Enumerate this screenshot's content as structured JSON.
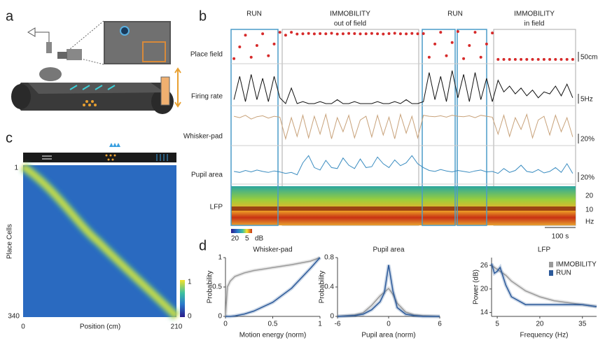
{
  "panel_labels": [
    "a",
    "b",
    "c",
    "d"
  ],
  "panel_b": {
    "periods": [
      {
        "label": "RUN"
      },
      {
        "label": "IMMOBILITY",
        "sublabel": "out of field"
      },
      {
        "label": "RUN"
      },
      {
        "label": "IMMOBILITY",
        "sublabel": "in field"
      }
    ],
    "traces": [
      {
        "name": "Place field",
        "scale": "50cm",
        "color": "#d62a2a",
        "values": [
          20,
          100,
          180,
          30,
          110,
          190,
          40,
          120,
          200,
          180,
          200,
          188,
          190,
          192,
          189,
          191,
          190,
          193,
          188,
          190,
          192,
          191,
          189,
          190,
          192,
          190,
          188,
          191,
          193,
          190,
          189,
          192,
          190,
          191,
          30,
          120,
          200,
          40,
          130,
          205,
          20,
          110,
          200,
          30,
          120,
          195,
          15,
          15,
          15,
          15,
          15,
          15,
          15,
          15,
          15,
          15,
          15,
          15,
          15,
          15
        ]
      },
      {
        "name": "Firing rate",
        "scale": "5Hz",
        "color": "#111111",
        "values": [
          2,
          14,
          1,
          15,
          2,
          13,
          1,
          14,
          3,
          0,
          8,
          0,
          1,
          0,
          0,
          1,
          0,
          0,
          2,
          0,
          0,
          1,
          0,
          0,
          0,
          1,
          0,
          0,
          1,
          0,
          2,
          0,
          0,
          1,
          16,
          2,
          14,
          1,
          17,
          3,
          15,
          1,
          16,
          2,
          13,
          1,
          12,
          6,
          9,
          5,
          8,
          4,
          7,
          3,
          6,
          5,
          9,
          4,
          10,
          3
        ]
      },
      {
        "name": "Whisker-pad",
        "scale": "20%",
        "color": "#c8a27a",
        "values": [
          58,
          55,
          60,
          52,
          57,
          59,
          54,
          58,
          56,
          10,
          55,
          15,
          60,
          12,
          58,
          20,
          62,
          10,
          55,
          25,
          60,
          12,
          50,
          58,
          14,
          60,
          18,
          56,
          10,
          62,
          22,
          58,
          12,
          60,
          58,
          57,
          59,
          56,
          60,
          58,
          57,
          59,
          55,
          60,
          58,
          56,
          20,
          60,
          15,
          55,
          30,
          62,
          12,
          50,
          58,
          18,
          60,
          25,
          55,
          14
        ]
      },
      {
        "name": "Pupil area",
        "scale": "20%",
        "color": "#3a8cc0",
        "values": [
          22,
          20,
          24,
          21,
          25,
          22,
          20,
          23,
          21,
          18,
          20,
          15,
          40,
          55,
          30,
          25,
          45,
          30,
          28,
          50,
          35,
          28,
          48,
          30,
          32,
          52,
          38,
          30,
          46,
          34,
          40,
          55,
          38,
          30,
          24,
          22,
          26,
          23,
          21,
          24,
          22,
          20,
          23,
          25,
          21,
          22,
          18,
          28,
          20,
          24,
          35,
          22,
          20,
          26,
          19,
          22,
          30,
          20,
          38,
          18
        ]
      }
    ],
    "lfp": {
      "name": "LFP",
      "ticks": [
        "20",
        "10"
      ],
      "unit": "Hz"
    },
    "colorbar": [
      "20",
      "5",
      "dB"
    ],
    "time_scale": "100 s"
  },
  "panel_c": {
    "ylabel": "Place Cells",
    "yticks": [
      "1",
      "340"
    ],
    "xlabel": "Position (cm)",
    "xticks": [
      "0",
      "210"
    ],
    "colorbar": [
      "1",
      "0"
    ]
  },
  "chart_data": [
    {
      "type": "line",
      "title": "Whisker-pad",
      "xlabel": "Motion energy (norm)",
      "ylabel": "Probability",
      "x": [
        0,
        0.02,
        0.05,
        0.1,
        0.2,
        0.3,
        0.5,
        0.7,
        0.9,
        1
      ],
      "xlim": [
        0,
        1
      ],
      "xticks": [
        0,
        0.5,
        1
      ],
      "ylim": [
        0,
        1
      ],
      "yticks": [
        0,
        0.5,
        1
      ],
      "series": [
        {
          "color": "#9a9a9a",
          "values": [
            0,
            0.5,
            0.6,
            0.68,
            0.74,
            0.78,
            0.83,
            0.88,
            0.94,
            1
          ]
        },
        {
          "color": "#2c5a9a",
          "values": [
            0,
            0,
            0,
            0.01,
            0.04,
            0.09,
            0.24,
            0.48,
            0.82,
            1
          ]
        }
      ]
    },
    {
      "type": "line",
      "title": "Pupil area",
      "xlabel": "Pupil area (norm)",
      "ylabel": "Probability",
      "x": [
        -6,
        -4,
        -3,
        -2,
        -1,
        -0.5,
        0,
        0.5,
        1,
        2,
        3,
        4,
        6
      ],
      "xlim": [
        -6,
        6
      ],
      "xticks": [
        -6,
        0,
        6
      ],
      "ylim": [
        0,
        0.8
      ],
      "yticks": [
        0,
        0.4,
        0.8
      ],
      "series": [
        {
          "color": "#9a9a9a",
          "values": [
            0,
            0.02,
            0.05,
            0.15,
            0.28,
            0.33,
            0.38,
            0.3,
            0.18,
            0.06,
            0.02,
            0.01,
            0
          ]
        },
        {
          "color": "#2c5a9a",
          "values": [
            0,
            0.01,
            0.03,
            0.09,
            0.2,
            0.32,
            0.7,
            0.35,
            0.12,
            0.03,
            0.01,
            0,
            0
          ]
        }
      ]
    },
    {
      "type": "line",
      "title": "LFP",
      "xlabel": "Frequency (Hz)",
      "ylabel": "Power (dB)",
      "x": [
        3,
        4,
        5,
        6,
        8,
        10,
        15,
        20,
        25,
        30,
        35,
        40
      ],
      "xlim": [
        3,
        40
      ],
      "xticks": [
        5,
        20,
        35
      ],
      "ylim": [
        13,
        28
      ],
      "yticks": [
        14,
        20,
        26
      ],
      "legend": "upper right",
      "series": [
        {
          "name": "IMMOBILITY",
          "color": "#9a9a9a",
          "values": [
            26,
            25.5,
            25,
            24.5,
            23.5,
            22,
            19.5,
            18,
            17,
            16.5,
            16,
            15.5
          ]
        },
        {
          "name": "RUN",
          "color": "#2c5a9a",
          "values": [
            26.5,
            24,
            24.5,
            25.5,
            21,
            18,
            16,
            16,
            16,
            16,
            16,
            15.5
          ]
        }
      ]
    }
  ]
}
